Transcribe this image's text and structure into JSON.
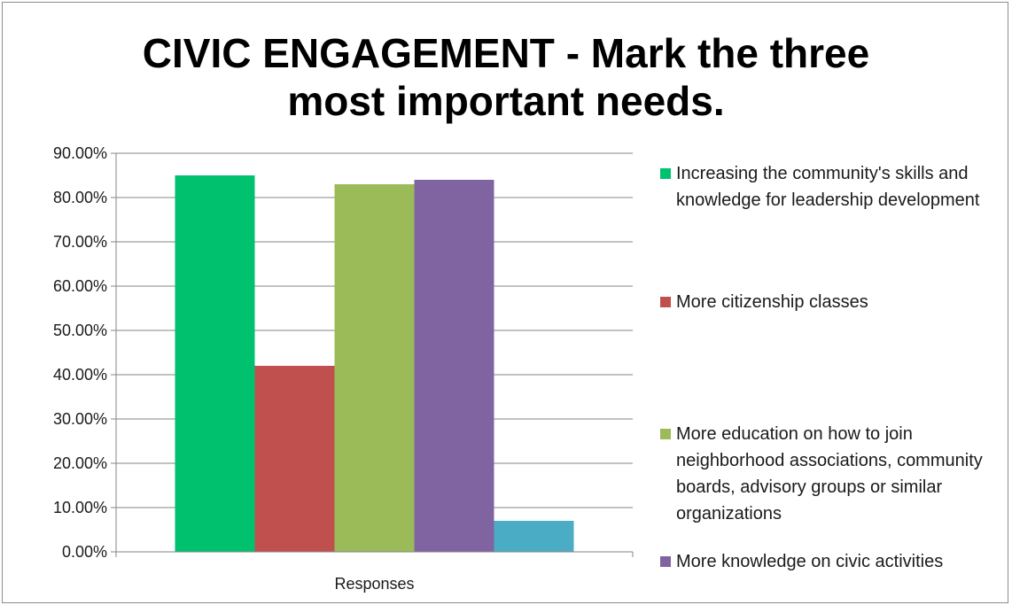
{
  "chart_data": {
    "type": "bar",
    "title_lines": [
      "CIVIC ENGAGEMENT - Mark the three",
      "most important needs."
    ],
    "categories": [
      "Responses"
    ],
    "series": [
      {
        "name": "Increasing the community's skills and knowledge for leadership development",
        "values": [
          0.85
        ],
        "color": "#00c16e"
      },
      {
        "name": "More citizenship classes",
        "values": [
          0.42
        ],
        "color": "#c0504d"
      },
      {
        "name": "More education on how to join neighborhood associations, community boards, advisory groups or similar organizations",
        "values": [
          0.83
        ],
        "color": "#9bbb59"
      },
      {
        "name": "More knowledge on civic activities",
        "values": [
          0.84
        ],
        "color": "#8064a2"
      },
      {
        "name": "",
        "values": [
          0.07
        ],
        "color": "#4bacc6"
      }
    ],
    "ylim": [
      0,
      0.9
    ],
    "yticks": [
      "0.00%",
      "10.00%",
      "20.00%",
      "30.00%",
      "40.00%",
      "50.00%",
      "60.00%",
      "70.00%",
      "80.00%",
      "90.00%"
    ],
    "grid": true,
    "legend_position": "right"
  }
}
